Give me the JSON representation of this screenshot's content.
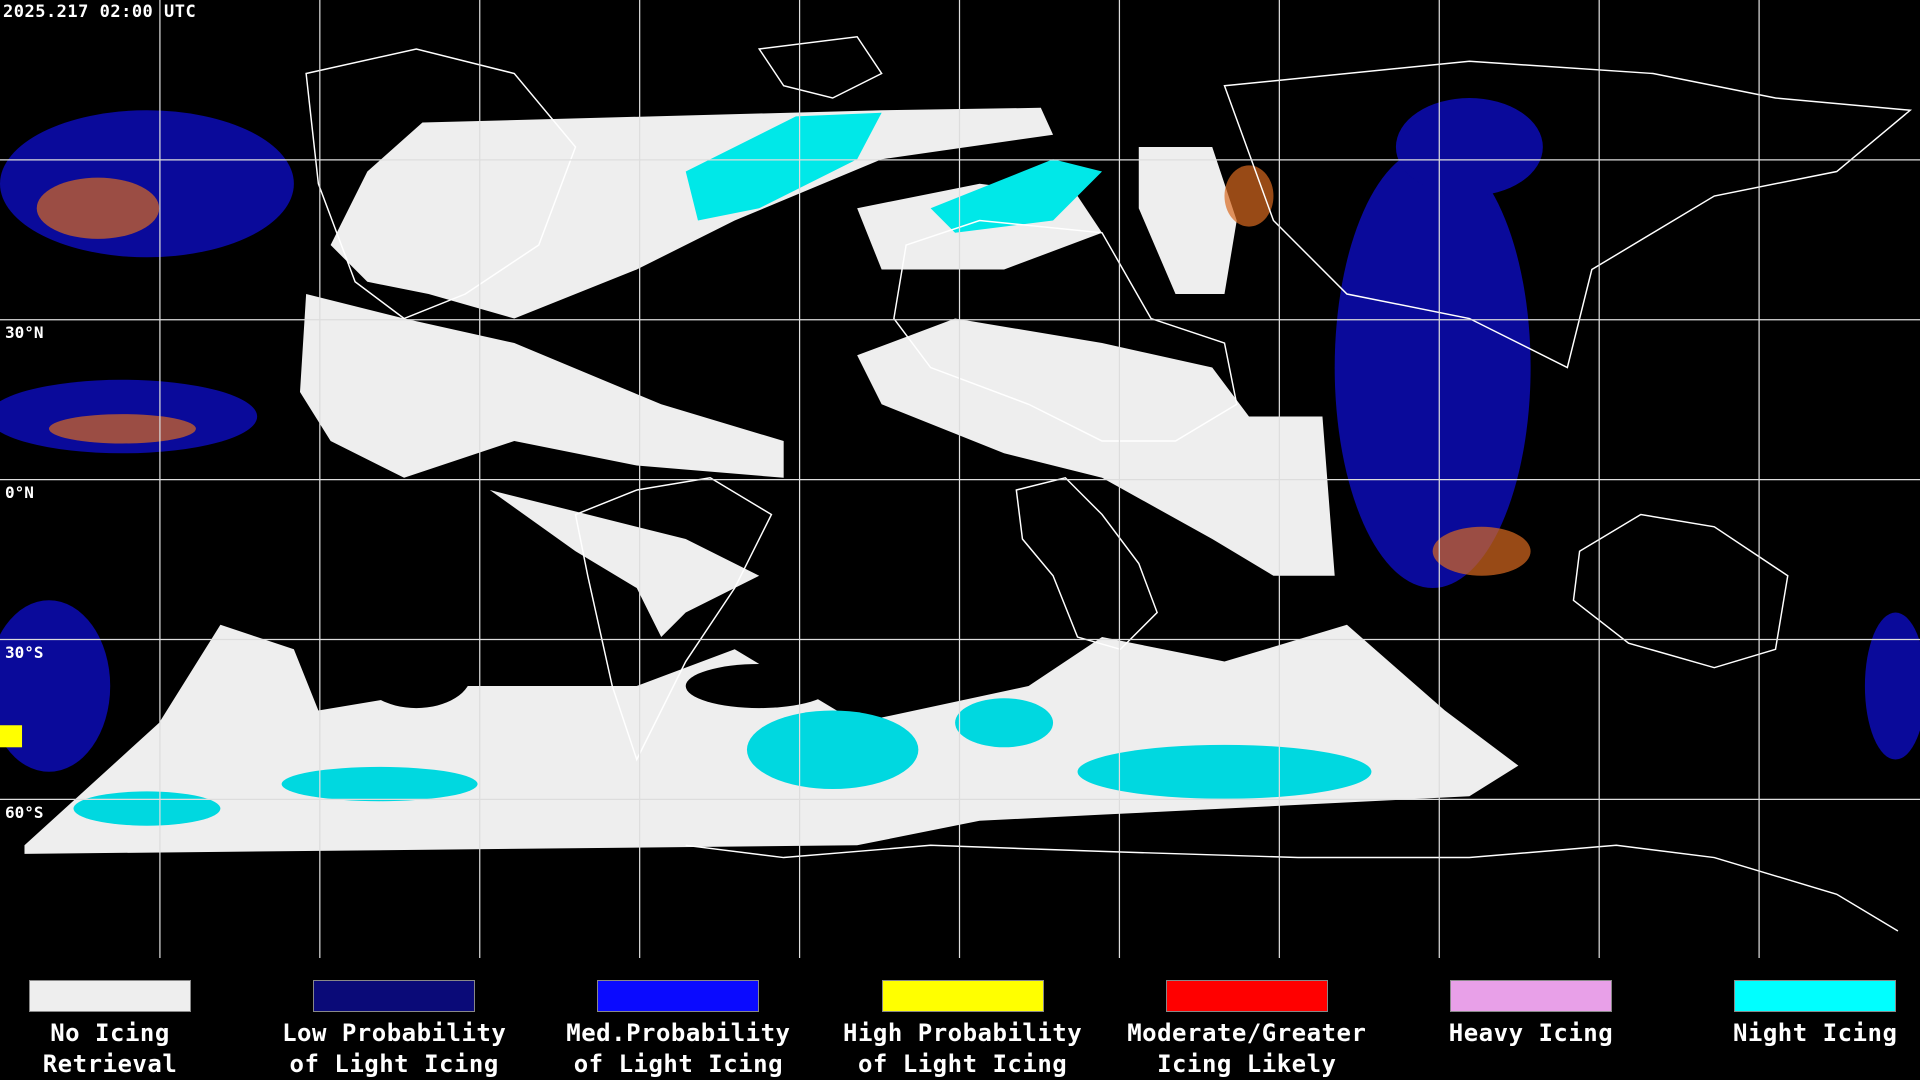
{
  "timestamp": "2025.217 02:00 UTC",
  "latitude_labels": [
    "30°N",
    "0°N",
    "30°S",
    "60°S"
  ],
  "legend": [
    {
      "line1": "No Icing",
      "line2": "Retrieval",
      "color": "#eeeeee"
    },
    {
      "line1": "Low Probability",
      "line2": "of Light Icing",
      "color": "#0a0a78"
    },
    {
      "line1": "Med.Probability",
      "line2": "of Light Icing",
      "color": "#0a0aff"
    },
    {
      "line1": "High Probability",
      "line2": "of Light Icing",
      "color": "#ffff00"
    },
    {
      "line1": "Moderate/Greater",
      "line2": "Icing Likely",
      "color": "#ff0000"
    },
    {
      "line1": "Heavy Icing",
      "line2": "",
      "color": "#e8a0e8"
    },
    {
      "line1": "Night Icing",
      "line2": "",
      "color": "#00ffff"
    }
  ]
}
